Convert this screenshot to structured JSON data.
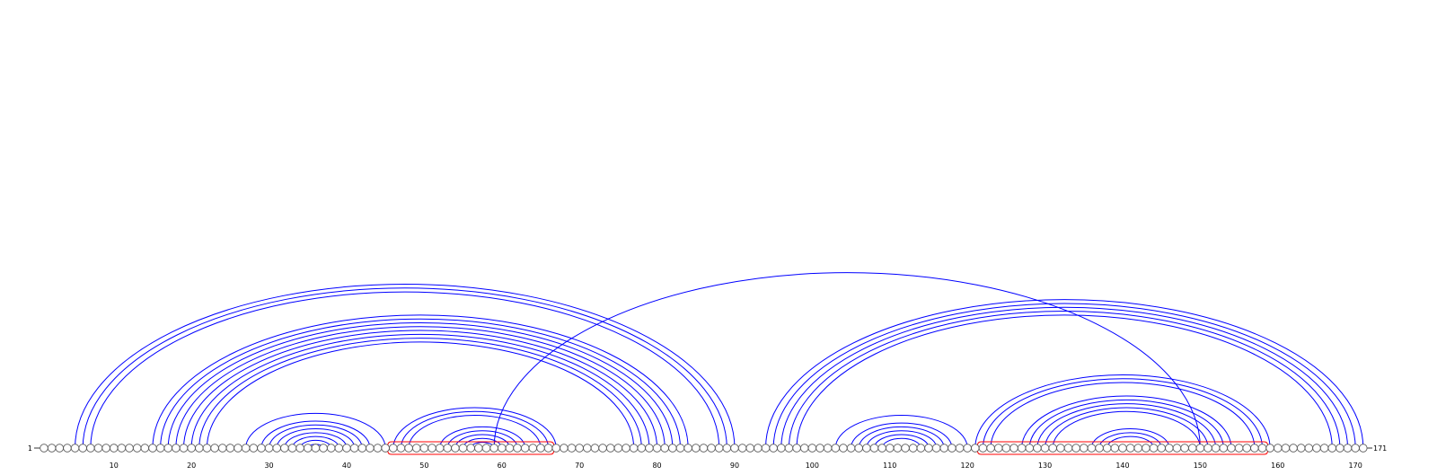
{
  "sequence": {
    "length": 171,
    "start_label": "1",
    "end_label": "171",
    "tick_labels": [
      "10",
      "20",
      "30",
      "40",
      "50",
      "60",
      "70",
      "80",
      "90",
      "100",
      "110",
      "120",
      "130",
      "140",
      "150",
      "160",
      "170"
    ]
  },
  "pairs": [
    [
      5,
      90
    ],
    [
      6,
      89
    ],
    [
      7,
      88
    ],
    [
      15,
      84
    ],
    [
      16,
      83
    ],
    [
      17,
      82
    ],
    [
      18,
      81
    ],
    [
      19,
      80
    ],
    [
      20,
      79
    ],
    [
      21,
      78
    ],
    [
      22,
      77
    ],
    [
      27,
      45
    ],
    [
      29,
      43
    ],
    [
      30,
      42
    ],
    [
      31,
      41
    ],
    [
      32,
      40
    ],
    [
      33,
      39
    ],
    [
      34,
      38
    ],
    [
      35,
      37
    ],
    [
      46,
      67
    ],
    [
      47,
      66
    ],
    [
      48,
      65
    ],
    [
      52,
      63
    ],
    [
      53,
      62
    ],
    [
      54,
      61
    ],
    [
      55,
      60
    ],
    [
      56,
      59
    ],
    [
      59,
      150
    ],
    [
      94,
      171
    ],
    [
      95,
      170
    ],
    [
      96,
      169
    ],
    [
      97,
      168
    ],
    [
      98,
      167
    ],
    [
      103,
      120
    ],
    [
      105,
      118
    ],
    [
      106,
      117
    ],
    [
      107,
      116
    ],
    [
      108,
      115
    ],
    [
      109,
      114
    ],
    [
      121,
      159
    ],
    [
      122,
      158
    ],
    [
      123,
      157
    ],
    [
      127,
      154
    ],
    [
      128,
      153
    ],
    [
      129,
      152
    ],
    [
      130,
      151
    ],
    [
      131,
      150
    ],
    [
      136,
      146
    ],
    [
      137,
      145
    ],
    [
      138,
      144
    ]
  ],
  "highlight_regions": [
    [
      46,
      66
    ],
    [
      122,
      158
    ]
  ],
  "colors": {
    "arc": "#0000ff",
    "highlight": "#ff0000",
    "node_fill": "#ffffff",
    "node_stroke": "#555555"
  }
}
